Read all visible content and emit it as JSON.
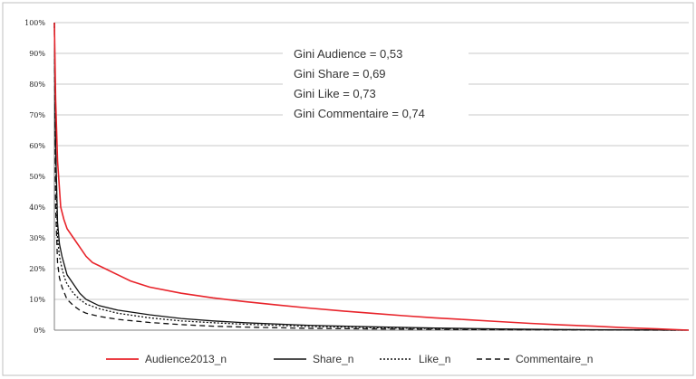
{
  "chart_data": {
    "type": "line",
    "title": "",
    "xlabel": "",
    "ylabel": "",
    "ylim": [
      0,
      100
    ],
    "y_ticks": [
      "0%",
      "10%",
      "20%",
      "30%",
      "40%",
      "50%",
      "60%",
      "70%",
      "80%",
      "90%",
      "100%"
    ],
    "grid": "horizontal",
    "legend_position": "bottom",
    "x_range": [
      0,
      1
    ],
    "series": [
      {
        "name": "Audience2013_n",
        "color": "#e8232a",
        "style": "solid",
        "x": [
          0,
          0.002,
          0.005,
          0.01,
          0.015,
          0.02,
          0.03,
          0.04,
          0.05,
          0.06,
          0.08,
          0.1,
          0.12,
          0.15,
          0.2,
          0.25,
          0.3,
          0.35,
          0.4,
          0.45,
          0.5,
          0.55,
          0.6,
          0.65,
          0.7,
          0.75,
          0.8,
          0.85,
          0.9,
          0.95,
          1.0
        ],
        "values": [
          100,
          75,
          55,
          40,
          36,
          33,
          30,
          27,
          24,
          22,
          20,
          18,
          16,
          14,
          12,
          10.5,
          9.3,
          8.2,
          7.2,
          6.3,
          5.5,
          4.7,
          4.0,
          3.4,
          2.8,
          2.2,
          1.7,
          1.3,
          0.8,
          0.4,
          0
        ]
      },
      {
        "name": "Share_n",
        "color": "#111111",
        "style": "solid",
        "x": [
          0,
          0.002,
          0.005,
          0.008,
          0.012,
          0.016,
          0.02,
          0.03,
          0.04,
          0.05,
          0.07,
          0.1,
          0.15,
          0.2,
          0.25,
          0.3,
          0.4,
          0.5,
          0.6,
          0.7,
          0.8,
          0.9,
          1.0
        ],
        "values": [
          100,
          60,
          35,
          28,
          24,
          21,
          18,
          15,
          12,
          10,
          8,
          6.5,
          5,
          3.8,
          3.0,
          2.4,
          1.6,
          1.1,
          0.7,
          0.4,
          0.2,
          0.1,
          0
        ]
      },
      {
        "name": "Like_n",
        "color": "#111111",
        "style": "dotted",
        "x": [
          0,
          0.002,
          0.005,
          0.008,
          0.012,
          0.016,
          0.02,
          0.03,
          0.04,
          0.05,
          0.07,
          0.1,
          0.15,
          0.2,
          0.25,
          0.3,
          0.4,
          0.5,
          0.6,
          0.7,
          0.8,
          0.9,
          1.0
        ],
        "values": [
          100,
          55,
          30,
          24,
          20,
          17,
          15,
          12,
          10,
          8.5,
          7,
          5.5,
          4,
          3,
          2.4,
          1.9,
          1.2,
          0.8,
          0.5,
          0.3,
          0.15,
          0.05,
          0
        ]
      },
      {
        "name": "Commentaire_n",
        "color": "#111111",
        "style": "dashed",
        "x": [
          0,
          0.002,
          0.005,
          0.008,
          0.012,
          0.016,
          0.02,
          0.03,
          0.04,
          0.05,
          0.07,
          0.1,
          0.15,
          0.2,
          0.25,
          0.3,
          0.4,
          0.5,
          0.6,
          0.7,
          0.8,
          0.9,
          1.0
        ],
        "values": [
          100,
          40,
          22,
          17,
          14,
          12,
          10,
          8,
          6.5,
          5.5,
          4.5,
          3.5,
          2.5,
          1.8,
          1.3,
          1.0,
          0.6,
          0.4,
          0.25,
          0.15,
          0.08,
          0.03,
          0
        ]
      }
    ],
    "annotations": [
      "Gini Audience = 0,53",
      "Gini Share = 0,69",
      "Gini Like = 0,73",
      "Gini Commentaire = 0,74"
    ]
  }
}
